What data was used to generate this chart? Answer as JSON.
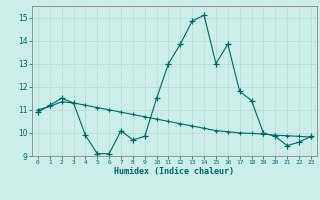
{
  "xlabel": "Humidex (Indice chaleur)",
  "bg_color": "#cceee8",
  "line_color": "#006666",
  "grid_color": "#b8d8d4",
  "ylim": [
    9,
    15.5
  ],
  "xlim": [
    -0.5,
    23.5
  ],
  "yticks": [
    9,
    10,
    11,
    12,
    13,
    14,
    15
  ],
  "xticks": [
    0,
    1,
    2,
    3,
    4,
    5,
    6,
    7,
    8,
    9,
    10,
    11,
    12,
    13,
    14,
    15,
    16,
    17,
    18,
    19,
    20,
    21,
    22,
    23
  ],
  "series1": [
    10.9,
    11.2,
    11.5,
    11.3,
    9.9,
    9.1,
    9.1,
    10.1,
    9.7,
    9.85,
    11.5,
    13.0,
    13.85,
    14.85,
    15.1,
    13.0,
    13.85,
    11.8,
    11.4,
    10.0,
    9.85,
    9.45,
    9.6,
    9.85
  ],
  "series2": [
    11.0,
    11.15,
    11.35,
    11.3,
    11.2,
    11.1,
    11.0,
    10.9,
    10.8,
    10.7,
    10.6,
    10.5,
    10.4,
    10.3,
    10.2,
    10.1,
    10.05,
    10.0,
    9.98,
    9.95,
    9.9,
    9.88,
    9.85,
    9.82
  ]
}
